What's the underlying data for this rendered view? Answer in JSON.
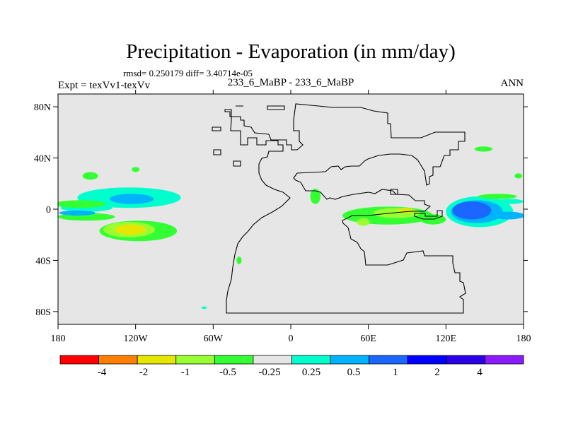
{
  "chart_data": {
    "type": "heatmap",
    "title": "Precipitation - Evaporation (in mm/day)",
    "stats_text": "rmsd= 0.250179 diff= 3.40714e-05",
    "subtitle": "233_6_MaBP - 233_6_MaBP",
    "expt_label": "Expt = texVv1-texVv",
    "season_label": "ANN",
    "x_ticks": [
      {
        "label": "180",
        "lon": -180
      },
      {
        "label": "120W",
        "lon": -120
      },
      {
        "label": "60W",
        "lon": -60
      },
      {
        "label": "0",
        "lon": 0
      },
      {
        "label": "60E",
        "lon": 60
      },
      {
        "label": "120E",
        "lon": 120
      },
      {
        "label": "180",
        "lon": 180
      }
    ],
    "y_ticks": [
      {
        "label": "80N",
        "lat": 80
      },
      {
        "label": "40N",
        "lat": 40
      },
      {
        "label": "0",
        "lat": 0
      },
      {
        "label": "40S",
        "lat": -40
      },
      {
        "label": "80S",
        "lat": -80
      }
    ],
    "lon_range": [
      -180,
      180
    ],
    "lat_range": [
      -90,
      90
    ],
    "colorbar": {
      "colors": [
        "#ff0000",
        "#ff8000",
        "#e6e600",
        "#99ff33",
        "#33ff33",
        "#e6e6e6",
        "#00ffcc",
        "#00b3ff",
        "#1a66ff",
        "#0000ff",
        "#2a00e6",
        "#8c1aff"
      ],
      "labels": [
        "-4",
        "-2",
        "-1",
        "-0.5",
        "-0.25",
        "0.25",
        "0.5",
        "1",
        "2",
        "4"
      ]
    },
    "colors": {
      "land_bg": "#e6e6e6",
      "outline": "#000000"
    },
    "anomalies": [
      {
        "lon": -118,
        "lat": -17,
        "rx": 30,
        "ry": 8,
        "level": "-0.25"
      },
      {
        "lon": -125,
        "lat": -16,
        "rx": 20,
        "ry": 6,
        "level": "-0.5"
      },
      {
        "lon": -124,
        "lat": -16,
        "rx": 12,
        "ry": 4,
        "level": "-1"
      },
      {
        "lon": -158,
        "lat": -6,
        "rx": 22,
        "ry": 3,
        "level": "-0.25"
      },
      {
        "lon": -125,
        "lat": 9,
        "rx": 40,
        "ry": 8,
        "level": "0.5"
      },
      {
        "lon": -123,
        "lat": 8,
        "rx": 17,
        "ry": 4,
        "level": "1"
      },
      {
        "lon": -158,
        "lat": 1,
        "rx": 20,
        "ry": 3,
        "level": "0.5"
      },
      {
        "lon": -165,
        "lat": -3,
        "rx": 14,
        "ry": 2,
        "level": "1"
      },
      {
        "lon": -163,
        "lat": 4,
        "rx": 20,
        "ry": 3,
        "level": "-0.25"
      },
      {
        "lon": -155,
        "lat": 26,
        "rx": 6,
        "ry": 3,
        "level": "-0.25"
      },
      {
        "lon": -120,
        "lat": 31,
        "rx": 3,
        "ry": 2,
        "level": "-0.25"
      },
      {
        "lon": 75,
        "lat": -5,
        "rx": 35,
        "ry": 7,
        "level": "-0.25"
      },
      {
        "lon": 82,
        "lat": -3,
        "rx": 18,
        "ry": 4,
        "level": "-0.5"
      },
      {
        "lon": 89,
        "lat": -1,
        "rx": 6,
        "ry": 2,
        "level": "-1"
      },
      {
        "lon": 110,
        "lat": -8,
        "rx": 10,
        "ry": 4,
        "level": "-0.25"
      },
      {
        "lon": 56,
        "lat": -10,
        "rx": 5,
        "ry": 3,
        "level": "-0.5"
      },
      {
        "lon": 50,
        "lat": -5,
        "rx": 6,
        "ry": 3,
        "level": "-0.25"
      },
      {
        "lon": 19,
        "lat": 10,
        "rx": 4,
        "ry": 6,
        "level": "-0.25"
      },
      {
        "lon": 146,
        "lat": -2,
        "rx": 26,
        "ry": 12,
        "level": "0.5"
      },
      {
        "lon": 144,
        "lat": -2,
        "rx": 20,
        "ry": 9,
        "level": "1"
      },
      {
        "lon": 140,
        "lat": -1,
        "rx": 15,
        "ry": 7,
        "level": "2"
      },
      {
        "lon": 168,
        "lat": -5,
        "rx": 13,
        "ry": 3,
        "level": "1"
      },
      {
        "lon": 169,
        "lat": 6,
        "rx": 11,
        "ry": 2,
        "level": "0.5"
      },
      {
        "lon": 160,
        "lat": 10,
        "rx": 15,
        "ry": 2,
        "level": "-0.25"
      },
      {
        "lon": 149,
        "lat": 47,
        "rx": 7,
        "ry": 2,
        "level": "-0.25"
      },
      {
        "lon": 176,
        "lat": 26,
        "rx": 3,
        "ry": 2,
        "level": "-0.25"
      },
      {
        "lon": -40,
        "lat": -40,
        "rx": 2,
        "ry": 3,
        "level": "-0.25"
      },
      {
        "lon": -67,
        "lat": -77,
        "rx": 2,
        "ry": 1,
        "level": "0.5"
      }
    ]
  }
}
